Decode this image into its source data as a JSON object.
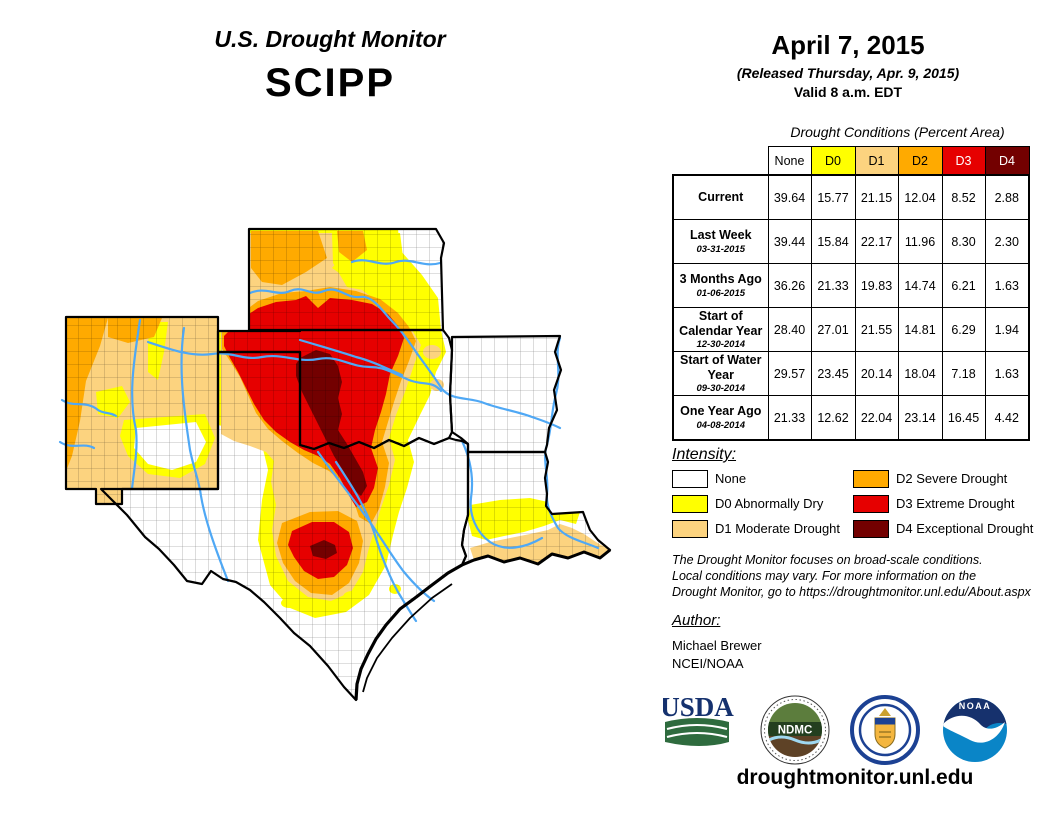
{
  "header": {
    "title_line1": "U.S. Drought Monitor",
    "title_line2": "SCIPP"
  },
  "date_block": {
    "date": "April 7, 2015",
    "released": "(Released Thursday, Apr. 9, 2015)",
    "valid": "Valid 8 a.m. EDT"
  },
  "table": {
    "title": "Drought Conditions (Percent Area)",
    "columns": [
      {
        "label": "None",
        "bg": "#FFFFFF",
        "fg": "#000000"
      },
      {
        "label": "D0",
        "bg": "#FFFF00",
        "fg": "#000000"
      },
      {
        "label": "D1",
        "bg": "#FCD37F",
        "fg": "#000000"
      },
      {
        "label": "D2",
        "bg": "#FFAA00",
        "fg": "#000000"
      },
      {
        "label": "D3",
        "bg": "#E60000",
        "fg": "#FFFFFF"
      },
      {
        "label": "D4",
        "bg": "#730000",
        "fg": "#FFFFFF"
      }
    ],
    "rows": [
      {
        "label": "Current",
        "sublabel": "",
        "values": [
          "39.64",
          "15.77",
          "21.15",
          "12.04",
          "8.52",
          "2.88"
        ]
      },
      {
        "label": "Last Week",
        "sublabel": "03-31-2015",
        "values": [
          "39.44",
          "15.84",
          "22.17",
          "11.96",
          "8.30",
          "2.30"
        ]
      },
      {
        "label": "3 Months Ago",
        "sublabel": "01-06-2015",
        "values": [
          "36.26",
          "21.33",
          "19.83",
          "14.74",
          "6.21",
          "1.63"
        ]
      },
      {
        "label": "Start of Calendar Year",
        "sublabel": "12-30-2014",
        "values": [
          "28.40",
          "27.01",
          "21.55",
          "14.81",
          "6.29",
          "1.94"
        ]
      },
      {
        "label": "Start of Water Year",
        "sublabel": "09-30-2014",
        "values": [
          "29.57",
          "23.45",
          "20.14",
          "18.04",
          "7.18",
          "1.63"
        ]
      },
      {
        "label": "One Year Ago",
        "sublabel": "04-08-2014",
        "values": [
          "21.33",
          "12.62",
          "22.04",
          "23.14",
          "16.45",
          "4.42"
        ]
      }
    ]
  },
  "legend": {
    "heading": "Intensity:",
    "items": [
      {
        "label": "None",
        "color": "#FFFFFF"
      },
      {
        "label": "D0 Abnormally Dry",
        "color": "#FFFF00"
      },
      {
        "label": "D1 Moderate Drought",
        "color": "#FCD37F"
      },
      {
        "label": "D2 Severe Drought",
        "color": "#FFAA00"
      },
      {
        "label": "D3 Extreme Drought",
        "color": "#E60000"
      },
      {
        "label": "D4 Exceptional Drought",
        "color": "#730000"
      }
    ]
  },
  "disclaimer": {
    "line1": "The Drought Monitor focuses on broad-scale conditions.",
    "line2": "Local conditions may vary. For more information on the",
    "line3": "Drought Monitor, go to https://droughtmonitor.unl.edu/About.aspx"
  },
  "author": {
    "heading": "Author:",
    "name": "Michael Brewer",
    "org": "NCEI/NOAA"
  },
  "logos": {
    "usda": "USDA",
    "ndmc": "NDMC",
    "noaa": "NOAA"
  },
  "footer": {
    "website": "droughtmonitor.unl.edu"
  },
  "map": {
    "region": "SCIPP",
    "states_shown": [
      "New Mexico",
      "Kansas",
      "Oklahoma",
      "Texas",
      "Arkansas",
      "Louisiana"
    ],
    "colors": {
      "none": "#FFFFFF",
      "D0": "#FFFF00",
      "D1": "#FCD37F",
      "D2": "#FFAA00",
      "D3": "#E60000",
      "D4": "#730000"
    },
    "river_color": "#4FA8F5",
    "border_color": "#000000"
  }
}
